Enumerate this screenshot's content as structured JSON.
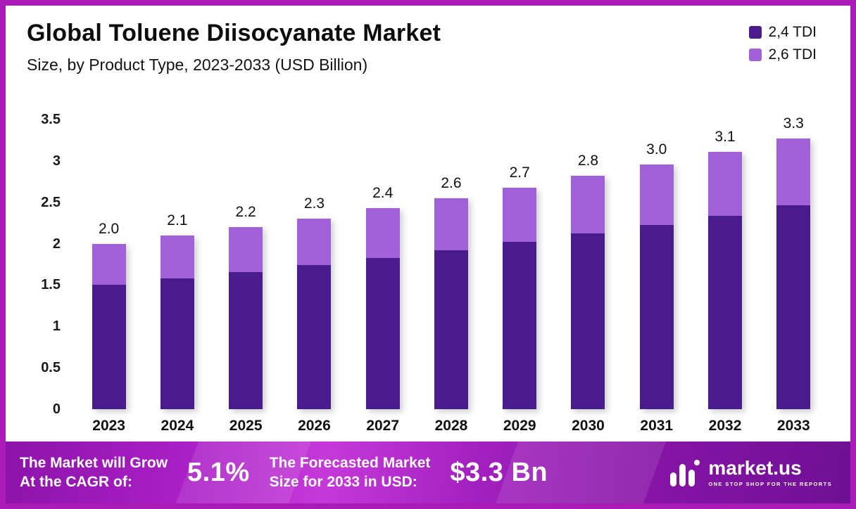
{
  "header": {
    "title": "Global Toluene Diisocyanate Market",
    "subtitle": "Size, by Product Type, 2023-2033 (USD Billion)"
  },
  "legend": [
    {
      "label": "2,4 TDI",
      "color": "#4a1b8c"
    },
    {
      "label": "2,6 TDI",
      "color": "#a161d9"
    }
  ],
  "colors": {
    "bar_dark": "#4a1b8c",
    "bar_light": "#a161d9",
    "frame": "#a81bb5",
    "footer_purple": "#8c13a9"
  },
  "chart_data": {
    "type": "bar",
    "stacked": true,
    "title": "Global Toluene Diisocyanate Market Size, by Product Type, 2023-2033 (USD Billion)",
    "categories": [
      "2023",
      "2024",
      "2025",
      "2026",
      "2027",
      "2028",
      "2029",
      "2030",
      "2031",
      "2032",
      "2033"
    ],
    "series": [
      {
        "name": "2,4 TDI",
        "color": "#4a1b8c",
        "values": [
          1.5,
          1.58,
          1.66,
          1.74,
          1.83,
          1.92,
          2.02,
          2.12,
          2.23,
          2.34,
          2.46
        ]
      },
      {
        "name": "2,6 TDI",
        "color": "#a161d9",
        "values": [
          0.5,
          0.52,
          0.54,
          0.56,
          0.6,
          0.63,
          0.66,
          0.7,
          0.73,
          0.77,
          0.81
        ]
      }
    ],
    "totals_labels": [
      "2.0",
      "2.1",
      "2.2",
      "2.3",
      "2.4",
      "2.6",
      "2.7",
      "2.8",
      "3.0",
      "3.1",
      "3.3"
    ],
    "xlabel": "",
    "ylabel": "",
    "ylim": [
      0,
      3.5
    ],
    "yticks": [
      "0",
      "0.5",
      "1",
      "1.5",
      "2",
      "2.5",
      "3",
      "3.5"
    ],
    "grid": false,
    "legend_position": "top-right"
  },
  "footer": {
    "cagr_text_line1": "The Market will Grow",
    "cagr_text_line2": "At the CAGR of:",
    "cagr_value": "5.1%",
    "forecast_text_line1": "The Forecasted Market",
    "forecast_text_line2": "Size for 2033 in USD:",
    "forecast_value": "$3.3 Bn",
    "brand": "market.us",
    "brand_tagline": "ONE STOP SHOP FOR THE REPORTS"
  }
}
